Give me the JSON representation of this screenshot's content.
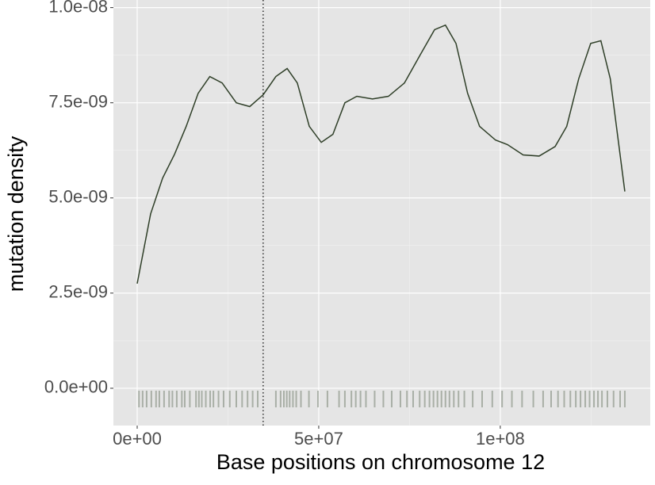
{
  "chart_data": {
    "type": "line",
    "xlabel": "Base positions on chromosome 12",
    "ylabel": "mutation density",
    "x": [
      0,
      3700000,
      7000000,
      10300000,
      13500000,
      16800000,
      20000000,
      23400000,
      27300000,
      31000000,
      34700000,
      38200000,
      41300000,
      44100000,
      47400000,
      50700000,
      53900000,
      57200000,
      60500000,
      64800000,
      69200000,
      73600000,
      77900000,
      81900000,
      84900000,
      87800000,
      91000000,
      94300000,
      98700000,
      102000000,
      106300000,
      110700000,
      115100000,
      118300000,
      121600000,
      124900000,
      127700000,
      130300000,
      134300000
    ],
    "series": [
      {
        "color": "#2f3f28",
        "values": [
          2.75e-09,
          4.58e-09,
          5.52e-09,
          6.15e-09,
          6.88e-09,
          7.75e-09,
          8.19e-09,
          8.02e-09,
          7.5e-09,
          7.4e-09,
          7.71e-09,
          8.19e-09,
          8.4e-09,
          8.02e-09,
          6.88e-09,
          6.46e-09,
          6.67e-09,
          7.5e-09,
          7.67e-09,
          7.6e-09,
          7.67e-09,
          8.02e-09,
          8.75e-09,
          9.42e-09,
          9.54e-09,
          9.06e-09,
          7.75e-09,
          6.88e-09,
          6.52e-09,
          6.4e-09,
          6.13e-09,
          6.1e-09,
          6.35e-09,
          6.88e-09,
          8.13e-09,
          9.06e-09,
          9.13e-09,
          8.13e-09,
          5.17e-09
        ]
      }
    ],
    "rug_color": "#3a4a30",
    "rug_x": [
      500000,
      1500000,
      2600000,
      3900000,
      5200000,
      6100000,
      7400000,
      8800000,
      9700000,
      10900000,
      12300000,
      13100000,
      14500000,
      16200000,
      17000000,
      17800000,
      18900000,
      20100000,
      21000000,
      22400000,
      23800000,
      25500000,
      27300000,
      28900000,
      30400000,
      31800000,
      33200000,
      38200000,
      39500000,
      40400000,
      41200000,
      42000000,
      42900000,
      43800000,
      45100000,
      47300000,
      49800000,
      52400000,
      55600000,
      57200000,
      59000000,
      60200000,
      61500000,
      63000000,
      65400000,
      67800000,
      70100000,
      72500000,
      74300000,
      76000000,
      77800000,
      79200000,
      80500000,
      81600000,
      82700000,
      83800000,
      84900000,
      86000000,
      87200000,
      88500000,
      90100000,
      92400000,
      95000000,
      97800000,
      100500000,
      103200000,
      106000000,
      109100000,
      111800000,
      114000000,
      115900000,
      117600000,
      119300000,
      120800000,
      122100000,
      123400000,
      124600000,
      125800000,
      126900000,
      128000000,
      129500000,
      131200000,
      133000000,
      134300000
    ],
    "vline": 34700000,
    "xlim": [
      -6550000,
      141300000
    ],
    "ylim": [
      -9.8e-10,
      1.02e-08
    ],
    "xticks": [
      {
        "value": 0,
        "label": "0e+00"
      },
      {
        "value": 50000000,
        "label": "5e+07"
      },
      {
        "value": 100000000,
        "label": "1e+08"
      }
    ],
    "yticks": [
      {
        "value": 0,
        "label": "0.0e+00"
      },
      {
        "value": 2.5e-09,
        "label": "2.5e-09"
      },
      {
        "value": 5e-09,
        "label": "5.0e-09"
      },
      {
        "value": 7.5e-09,
        "label": "7.5e-09"
      },
      {
        "value": 1e-08,
        "label": "1.0e-08"
      }
    ],
    "minor_xticks": [
      25000000,
      75000000,
      125000000
    ],
    "minor_yticks": [
      1.25e-09,
      3.75e-09,
      6.25e-09,
      8.75e-09
    ],
    "grid": true
  }
}
